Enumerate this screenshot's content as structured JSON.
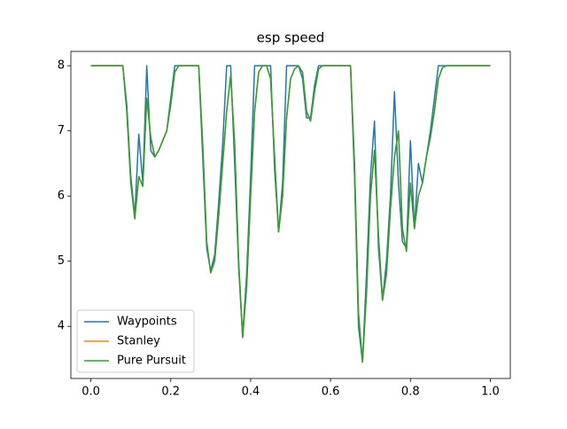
{
  "chart_data": {
    "type": "line",
    "title": "esp speed",
    "x": [
      0,
      0.01,
      0.02,
      0.03,
      0.04,
      0.05,
      0.06,
      0.07,
      0.08,
      0.09,
      0.1,
      0.11,
      0.12,
      0.13,
      0.14,
      0.15,
      0.16,
      0.17,
      0.18,
      0.19,
      0.2,
      0.21,
      0.22,
      0.23,
      0.24,
      0.25,
      0.26,
      0.27,
      0.28,
      0.29,
      0.3,
      0.31,
      0.32,
      0.33,
      0.34,
      0.35,
      0.36,
      0.37,
      0.38,
      0.39,
      0.4,
      0.41,
      0.42,
      0.43,
      0.44,
      0.45,
      0.46,
      0.47,
      0.48,
      0.49,
      0.5,
      0.51,
      0.52,
      0.53,
      0.54,
      0.55,
      0.56,
      0.57,
      0.58,
      0.59,
      0.6,
      0.61,
      0.62,
      0.63,
      0.64,
      0.65,
      0.66,
      0.67,
      0.68,
      0.69,
      0.7,
      0.71,
      0.72,
      0.73,
      0.74,
      0.75,
      0.76,
      0.77,
      0.78,
      0.79,
      0.8,
      0.81,
      0.82,
      0.83,
      0.84,
      0.85,
      0.86,
      0.87,
      0.88,
      0.89,
      0.9,
      0.91,
      0.92,
      0.93,
      0.94,
      0.95,
      0.96,
      0.97,
      0.98,
      0.99,
      1
    ],
    "series": [
      {
        "name": "Waypoints",
        "color": "#1f77b4",
        "values": [
          8,
          8,
          8,
          8,
          8,
          8,
          8,
          8,
          8,
          7.4,
          6.3,
          5.7,
          6.95,
          6.2,
          8,
          6.7,
          6.6,
          6.7,
          6.85,
          7.0,
          7.5,
          8,
          8,
          8,
          8,
          8,
          8,
          8,
          6.6,
          5.2,
          4.85,
          5.1,
          5.9,
          6.8,
          8,
          8,
          6.5,
          4.9,
          3.85,
          4.8,
          6.3,
          8,
          8,
          8,
          8,
          8,
          6.4,
          5.45,
          6.2,
          8,
          8,
          8,
          8,
          7.8,
          7.2,
          7.2,
          7.7,
          8,
          8,
          8,
          8,
          8,
          8,
          8,
          8,
          8,
          6.3,
          4.0,
          3.45,
          4.8,
          6.3,
          7.15,
          5.2,
          4.4,
          5.0,
          6.0,
          7.6,
          6.2,
          5.3,
          5.2,
          6.85,
          5.5,
          6.5,
          6.2,
          6.6,
          7.0,
          7.5,
          8,
          8,
          8,
          8,
          8,
          8,
          8,
          8,
          8,
          8,
          8,
          8,
          8,
          8
        ]
      },
      {
        "name": "Stanley",
        "color": "#ff7f0e",
        "values": [
          8,
          8,
          8,
          8,
          8,
          8,
          8,
          8,
          8,
          7.3,
          6.2,
          5.65,
          6.3,
          6.15,
          7.5,
          6.9,
          6.6,
          6.7,
          6.85,
          7.0,
          7.4,
          7.9,
          8,
          8,
          8,
          8,
          8,
          8,
          6.8,
          5.3,
          4.82,
          5.0,
          5.7,
          6.5,
          7.3,
          7.85,
          6.8,
          5.0,
          3.83,
          4.6,
          6.0,
          7.3,
          7.9,
          8,
          8,
          7.8,
          6.6,
          5.45,
          6.0,
          7.2,
          7.8,
          7.95,
          8,
          7.9,
          7.3,
          7.15,
          7.6,
          7.95,
          8,
          8,
          8,
          8,
          8,
          8,
          8,
          8,
          6.5,
          4.2,
          3.45,
          4.5,
          6.0,
          6.7,
          5.4,
          4.4,
          4.8,
          5.8,
          6.6,
          7.0,
          5.5,
          5.15,
          6.2,
          5.5,
          6.0,
          6.2,
          6.6,
          6.9,
          7.3,
          7.8,
          7.97,
          8,
          8,
          8,
          8,
          8,
          8,
          8,
          8,
          8,
          8,
          8,
          8
        ]
      },
      {
        "name": "Pure Pursuit",
        "color": "#2ca02c",
        "values": [
          8,
          8,
          8,
          8,
          8,
          8,
          8,
          8,
          8,
          7.3,
          6.2,
          5.65,
          6.3,
          6.15,
          7.5,
          6.9,
          6.6,
          6.7,
          6.85,
          7.0,
          7.4,
          7.9,
          8,
          8,
          8,
          8,
          8,
          8,
          6.8,
          5.3,
          4.82,
          5.0,
          5.7,
          6.5,
          7.3,
          7.85,
          6.8,
          5.0,
          3.83,
          4.6,
          6.0,
          7.3,
          7.9,
          8,
          8,
          7.8,
          6.6,
          5.45,
          6.0,
          7.2,
          7.8,
          7.95,
          8,
          7.9,
          7.3,
          7.15,
          7.6,
          7.95,
          8,
          8,
          8,
          8,
          8,
          8,
          8,
          8,
          6.5,
          4.2,
          3.45,
          4.5,
          6.0,
          6.7,
          5.4,
          4.4,
          4.8,
          5.8,
          6.6,
          7.0,
          5.5,
          5.15,
          6.2,
          5.5,
          6.0,
          6.2,
          6.6,
          6.9,
          7.3,
          7.8,
          7.97,
          8,
          8,
          8,
          8,
          8,
          8,
          8,
          8,
          8,
          8,
          8,
          8
        ]
      }
    ],
    "xlim": [
      -0.05,
      1.05
    ],
    "ylim": [
      3.2,
      8.22
    ],
    "xticks": [
      {
        "value": 0,
        "label": "0.0"
      },
      0.2,
      0.4,
      0.6,
      0.8,
      {
        "value": 1,
        "label": "1.0"
      }
    ],
    "yticks": [
      4,
      5,
      6,
      7,
      8
    ],
    "legend": "lower left"
  }
}
